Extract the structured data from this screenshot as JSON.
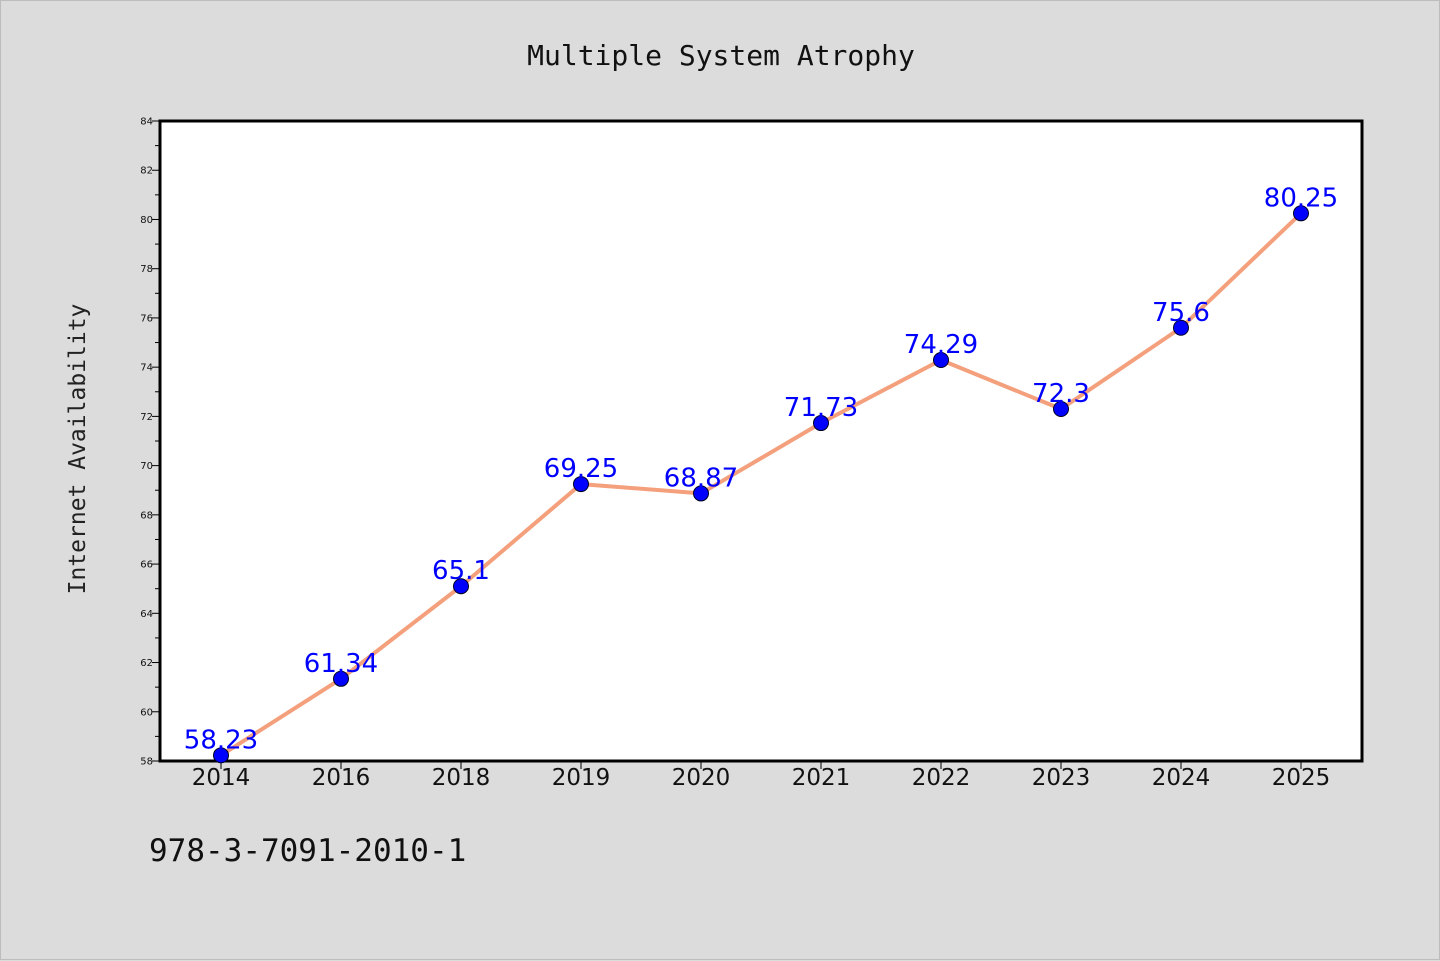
{
  "chart_data": {
    "type": "line",
    "title": "Multiple System Atrophy",
    "ylabel": "Internet Availability",
    "xlabel": "",
    "categories": [
      "2014",
      "2016",
      "2018",
      "2019",
      "2020",
      "2021",
      "2022",
      "2023",
      "2024",
      "2025"
    ],
    "series": [
      {
        "values": [
          58.23,
          61.34,
          65.1,
          69.25,
          68.87,
          71.73,
          74.29,
          72.3,
          75.6,
          80.25
        ],
        "labels": [
          "58.23",
          "61.34",
          "65.1",
          "69.25",
          "68.87",
          "71.73",
          "74.29",
          "72.3",
          "75.6",
          "80.25"
        ],
        "line_color": "#f4a07c",
        "marker_color": "#0000ff"
      }
    ],
    "ylim": [
      58,
      84
    ],
    "yticks": [
      58,
      60,
      62,
      64,
      66,
      68,
      70,
      72,
      74,
      76,
      78,
      80,
      82,
      84
    ],
    "grid": false,
    "legend": "none"
  },
  "footer": {
    "isbn": "978-3-7091-2010-1"
  },
  "colors": {
    "background": "#dcdcdc",
    "plot_area": "#ffffff",
    "line": "#f4a07c",
    "marker": "#0000ff",
    "data_label": "#0000ff"
  }
}
